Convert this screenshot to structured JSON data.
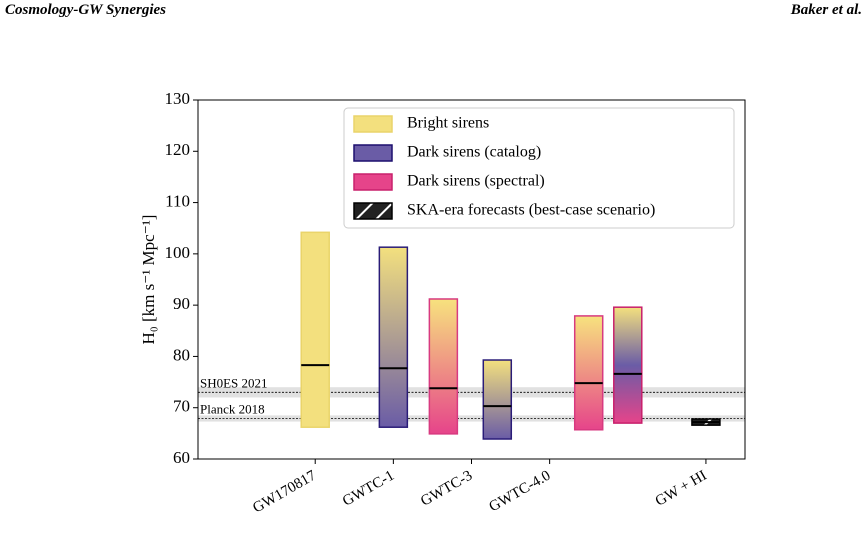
{
  "header": {
    "left": "Cosmology-GW Synergies",
    "right": "Baker et al."
  },
  "chart_data": {
    "type": "bar",
    "ylabel": "H₀ [km s⁻¹ Mpc⁻¹]",
    "ylim": [
      60,
      130
    ],
    "yticks": [
      60,
      70,
      80,
      90,
      100,
      110,
      120,
      130
    ],
    "xlim": [
      -0.5,
      6.5
    ],
    "xticks": [
      {
        "value": 1,
        "label": "GW170817"
      },
      {
        "value": 2,
        "label": "GWTC-1"
      },
      {
        "value": 3,
        "label": "GWTC-3"
      },
      {
        "value": 4,
        "label": "GWTC-4.0"
      },
      {
        "value": 6,
        "label": "GW + HI"
      }
    ],
    "legend_entries": [
      {
        "name": "Bright sirens",
        "color": "#f3e07e",
        "edge": "#ead46a"
      },
      {
        "name": "Dark sirens (catalog)",
        "color": "#6a5ca6",
        "edge": "#1c0f6e"
      },
      {
        "name": "Dark sirens (spectral)",
        "color": "#e6448a",
        "edge": "#c8206c"
      },
      {
        "name": "SKA-era forecasts (best-case scenario)",
        "color": "#333333",
        "edge": "#000000",
        "hatch": true
      }
    ],
    "legend": "upper right",
    "bars": [
      {
        "x": 1,
        "low": 66.2,
        "high": 104.2,
        "median": 78.3,
        "colors": [
          "#f3e07e",
          "#f3e07e"
        ],
        "edge": "#ead46a"
      },
      {
        "x": 2,
        "low": 66.2,
        "high": 101.3,
        "median": 77.7,
        "colors": [
          "#f3e07e",
          "#6a5ca6"
        ],
        "edge": "#2a1c78"
      },
      {
        "x": 2.64,
        "low": 64.9,
        "high": 91.2,
        "median": 73.8,
        "colors": [
          "#f7e27e",
          "#e6448a"
        ],
        "edge": "#d83a80"
      },
      {
        "x": 3.33,
        "low": 63.9,
        "high": 79.3,
        "median": 70.3,
        "colors": [
          "#f3e07e",
          "#6a5ca6"
        ],
        "edge": "#2a1c78"
      },
      {
        "x": 4.5,
        "low": 65.7,
        "high": 87.9,
        "median": 74.8,
        "colors": [
          "#f7e27e",
          "#e6448a"
        ],
        "edge": "#d83a80"
      },
      {
        "x": 5.0,
        "low": 67.0,
        "high": 89.6,
        "median": 76.6,
        "colors": [
          "#f3e07e",
          "#6a5ca6",
          "#e6448a"
        ],
        "edge": "#c8206c"
      },
      {
        "x": 6,
        "low": 66.6,
        "high": 67.8,
        "median": 67.2,
        "colors": [
          "#222222",
          "#222222"
        ],
        "edge": "#000000",
        "hatch": true
      }
    ],
    "refs": [
      {
        "label": "SH0ES 2021",
        "value": 73.0,
        "err": 1.0
      },
      {
        "label": "Planck 2018",
        "value": 67.9,
        "err": 0.6
      }
    ]
  }
}
